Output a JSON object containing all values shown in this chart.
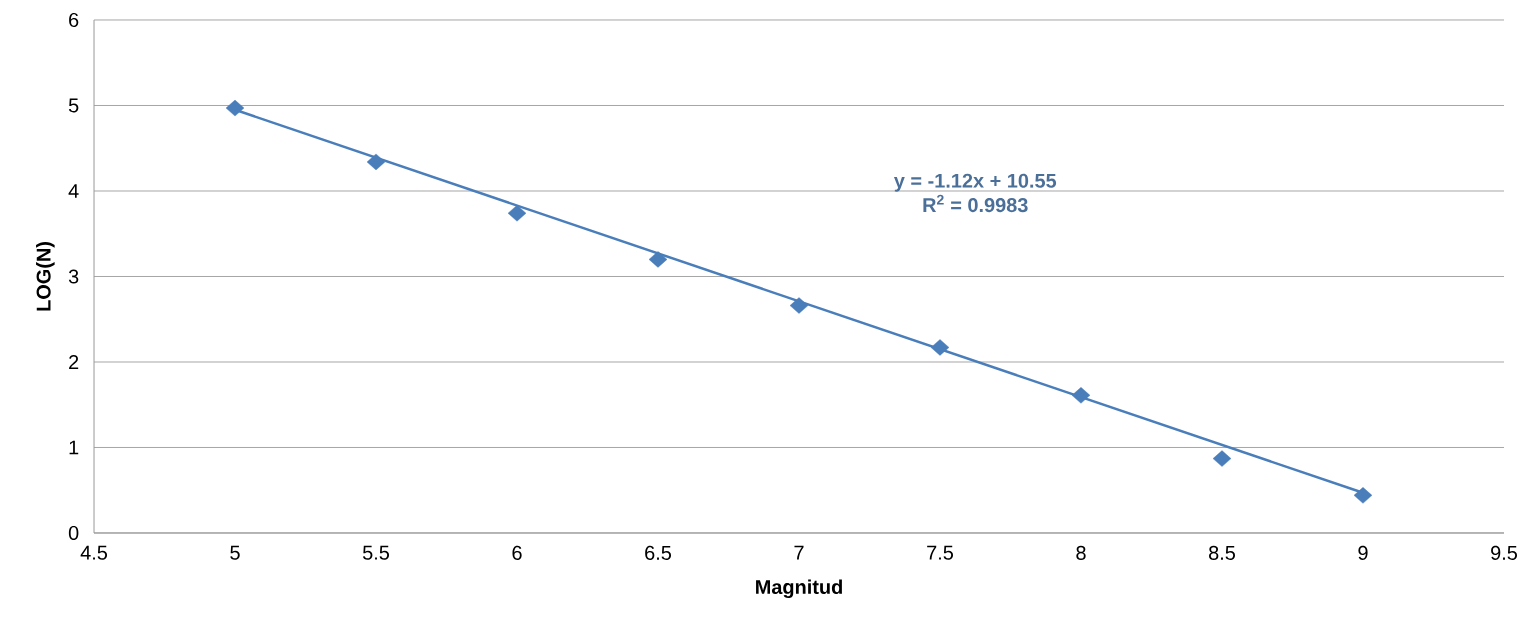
{
  "chart_data": {
    "type": "scatter",
    "xlabel": "Magnitud",
    "ylabel": "LOG(N)",
    "xlim": [
      4.5,
      9.5
    ],
    "xticks": [
      4.5,
      5,
      5.5,
      6,
      6.5,
      7,
      7.5,
      8,
      8.5,
      9,
      9.5
    ],
    "ylim": [
      0,
      6
    ],
    "yticks": [
      0,
      1,
      2,
      3,
      4,
      5,
      6
    ],
    "grid": "y",
    "series": [
      {
        "marker": "diamond",
        "color": "#4a7ebb",
        "x": [
          5,
          5.5,
          6,
          6.5,
          7,
          7.5,
          8,
          8.5,
          9
        ],
        "values": [
          4.97,
          4.34,
          3.74,
          3.2,
          2.66,
          2.17,
          1.61,
          0.87,
          0.44
        ]
      },
      {
        "type": "line",
        "marker": "none",
        "color": "#4a7ebb",
        "x": [
          5,
          9
        ],
        "values": [
          4.95,
          0.47
        ]
      }
    ],
    "annotations": [
      "y = -1.12x + 10.55",
      "R$^{2}$ = 0.9983"
    ]
  }
}
